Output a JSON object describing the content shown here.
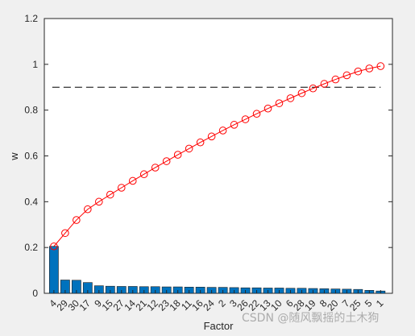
{
  "watermark": "CSDN @随风飘摇的土木狗",
  "chart_data": {
    "type": "bar+line",
    "xlabel": "Factor",
    "ylabel": "w",
    "ylim": [
      0,
      1.2
    ],
    "yticks": [
      "0",
      "0.2",
      "0.4",
      "0.6",
      "0.8",
      "1",
      "1.2"
    ],
    "categories": [
      "4",
      "29",
      "30",
      "17",
      "9",
      "15",
      "27",
      "14",
      "21",
      "12",
      "23",
      "18",
      "11",
      "16",
      "24",
      "2",
      "3",
      "26",
      "22",
      "13",
      "10",
      "6",
      "28",
      "19",
      "8",
      "20",
      "7",
      "25",
      "5",
      "1"
    ],
    "bar_values": [
      0.205,
      0.058,
      0.057,
      0.047,
      0.033,
      0.031,
      0.03,
      0.03,
      0.029,
      0.029,
      0.028,
      0.028,
      0.027,
      0.027,
      0.026,
      0.026,
      0.025,
      0.024,
      0.024,
      0.023,
      0.023,
      0.022,
      0.022,
      0.021,
      0.02,
      0.019,
      0.018,
      0.017,
      0.013,
      0.01
    ],
    "cumulative_values": [
      0.205,
      0.263,
      0.32,
      0.367,
      0.4,
      0.431,
      0.461,
      0.491,
      0.52,
      0.549,
      0.577,
      0.605,
      0.632,
      0.659,
      0.685,
      0.711,
      0.736,
      0.76,
      0.784,
      0.807,
      0.83,
      0.852,
      0.874,
      0.895,
      0.915,
      0.934,
      0.952,
      0.969,
      0.982,
      0.992
    ],
    "threshold": 0.9,
    "colors": {
      "bar": "#0072bd",
      "line": "#ff0000",
      "threshold": "#000000",
      "axes_bg": "#ffffff"
    },
    "grid": false,
    "legend": "none"
  }
}
